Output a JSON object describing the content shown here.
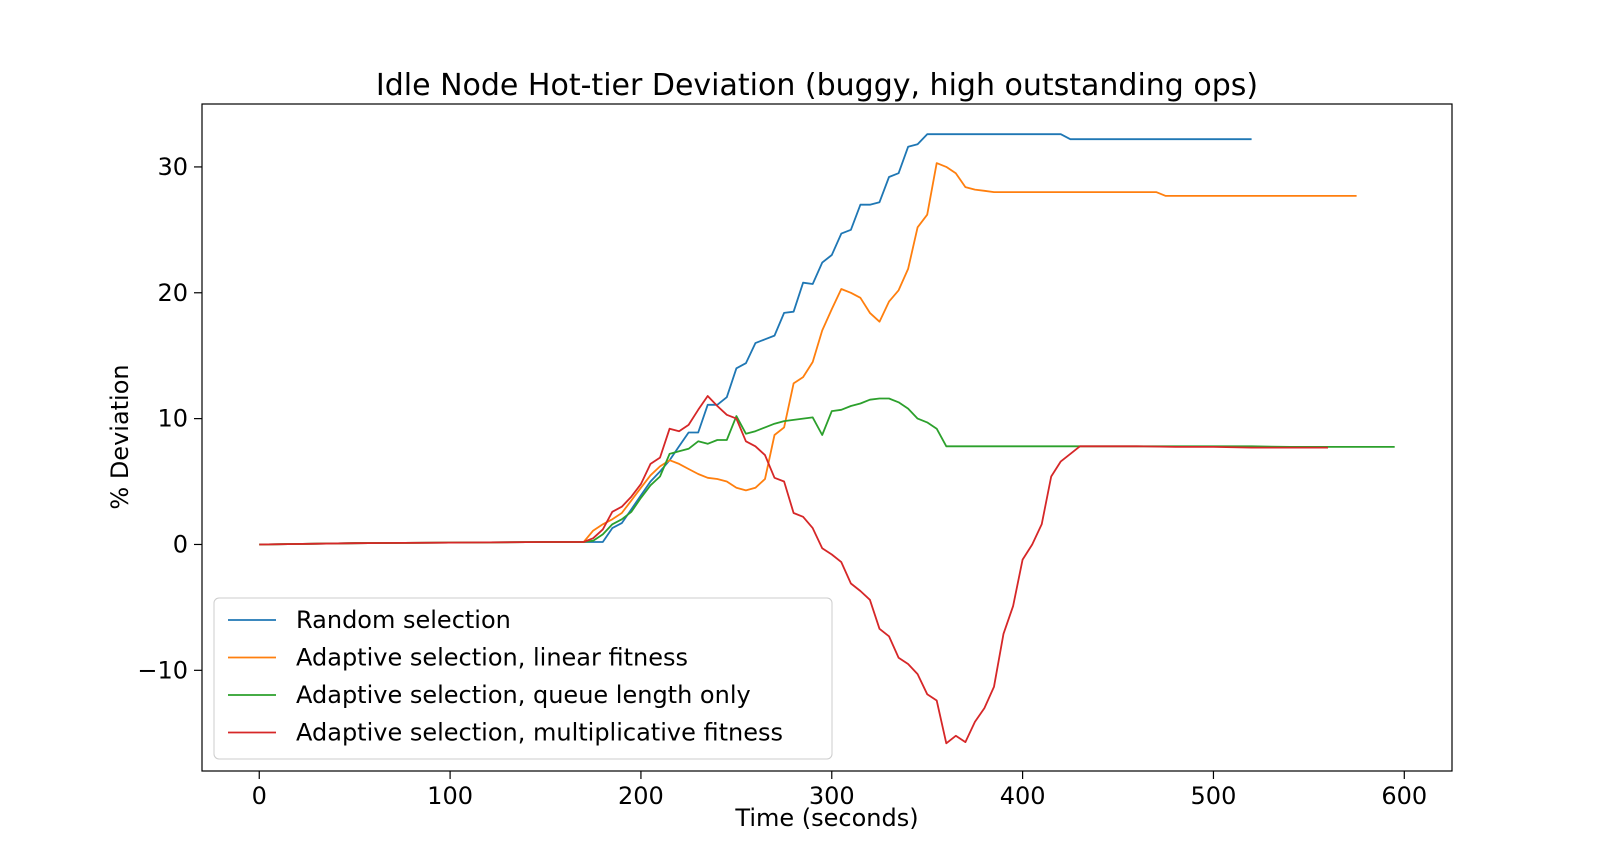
{
  "chart_data": {
    "type": "line",
    "title": "Idle Node Hot-tier Deviation (buggy, high outstanding ops)",
    "xlabel": "Time (seconds)",
    "ylabel": "% Deviation",
    "xlim": [
      -30,
      625
    ],
    "ylim": [
      -18,
      35
    ],
    "xticks": [
      0,
      100,
      200,
      300,
      400,
      500,
      600
    ],
    "yticks": [
      -10,
      0,
      10,
      20,
      30
    ],
    "xtick_labels": [
      "0",
      "100",
      "200",
      "300",
      "400",
      "500",
      "600"
    ],
    "ytick_labels": [
      "−10",
      "0",
      "10",
      "20",
      "30"
    ],
    "grid": false,
    "legend_position": "lower-left",
    "series": [
      {
        "name": "Random selection",
        "color": "#1f77b4",
        "x": [
          0,
          50,
          100,
          150,
          170,
          180,
          185,
          190,
          195,
          200,
          205,
          210,
          215,
          220,
          225,
          230,
          235,
          240,
          245,
          250,
          255,
          260,
          265,
          270,
          275,
          280,
          285,
          290,
          295,
          300,
          305,
          310,
          315,
          320,
          325,
          330,
          335,
          340,
          345,
          350,
          355,
          360,
          365,
          370,
          375,
          380,
          385,
          390,
          395,
          400,
          405,
          410,
          415,
          420,
          425,
          430,
          435,
          440,
          445,
          450,
          455,
          460,
          465,
          470,
          475,
          480,
          485,
          490,
          495,
          500,
          505,
          510,
          515,
          520
        ],
        "y": [
          0,
          0.1,
          0.15,
          0.2,
          0.2,
          0.2,
          1.3,
          1.7,
          2.8,
          3.9,
          5,
          5.8,
          6.7,
          7.8,
          8.9,
          8.9,
          11.1,
          11.1,
          11.7,
          14,
          14.4,
          16,
          16.3,
          16.6,
          18.4,
          18.5,
          20.8,
          20.7,
          22.4,
          23,
          24.7,
          25,
          27,
          27,
          27.2,
          29.2,
          29.5,
          31.6,
          31.8,
          32.6,
          32.6,
          32.6,
          32.6,
          32.6,
          32.6,
          32.6,
          32.6,
          32.6,
          32.6,
          32.6,
          32.6,
          32.6,
          32.6,
          32.6,
          32.2,
          32.2,
          32.2,
          32.2,
          32.2,
          32.2,
          32.2,
          32.2,
          32.2,
          32.2,
          32.2,
          32.2,
          32.2,
          32.2,
          32.2,
          32.2,
          32.2,
          32.2,
          32.2,
          32.2
        ]
      },
      {
        "name": "Adaptive selection, linear fitness",
        "color": "#ff7f0e",
        "x": [
          0,
          50,
          100,
          150,
          170,
          175,
          180,
          185,
          190,
          195,
          200,
          205,
          210,
          215,
          220,
          225,
          230,
          235,
          240,
          245,
          250,
          255,
          260,
          265,
          270,
          275,
          280,
          285,
          290,
          295,
          300,
          305,
          310,
          315,
          320,
          325,
          330,
          335,
          340,
          345,
          350,
          355,
          360,
          365,
          370,
          375,
          380,
          385,
          390,
          400,
          420,
          440,
          460,
          470,
          475,
          480,
          500,
          520,
          540,
          560,
          575
        ],
        "y": [
          0,
          0.1,
          0.15,
          0.2,
          0.2,
          1.1,
          1.6,
          2,
          2.5,
          3.5,
          4.5,
          5.5,
          6.2,
          6.7,
          6.4,
          6,
          5.6,
          5.3,
          5.2,
          5,
          4.5,
          4.3,
          4.5,
          5.2,
          8.7,
          9.3,
          12.8,
          13.3,
          14.5,
          17,
          18.7,
          20.3,
          20,
          19.6,
          18.4,
          17.7,
          19.3,
          20.2,
          21.9,
          25.2,
          26.2,
          30.3,
          30,
          29.5,
          28.4,
          28.2,
          28.1,
          28,
          28,
          28,
          28,
          28,
          28,
          28,
          27.7,
          27.7,
          27.7,
          27.7,
          27.7,
          27.7,
          27.7
        ]
      },
      {
        "name": "Adaptive selection, queue length only",
        "color": "#2ca02c",
        "x": [
          0,
          50,
          100,
          150,
          170,
          175,
          180,
          185,
          190,
          195,
          200,
          205,
          210,
          215,
          220,
          225,
          230,
          235,
          240,
          245,
          250,
          255,
          260,
          265,
          270,
          275,
          280,
          285,
          290,
          295,
          300,
          305,
          310,
          315,
          320,
          325,
          330,
          335,
          340,
          345,
          350,
          355,
          360,
          370,
          380,
          400,
          420,
          440,
          460,
          480,
          500,
          520,
          540,
          560,
          580,
          595
        ],
        "y": [
          0,
          0.1,
          0.15,
          0.2,
          0.2,
          0.3,
          0.8,
          1.6,
          2,
          2.6,
          3.7,
          4.7,
          5.4,
          7.2,
          7.4,
          7.6,
          8.2,
          8,
          8.3,
          8.3,
          10.2,
          8.8,
          9,
          9.3,
          9.6,
          9.8,
          9.9,
          10,
          10.1,
          8.7,
          10.6,
          10.7,
          11,
          11.2,
          11.5,
          11.6,
          11.6,
          11.3,
          10.8,
          10,
          9.7,
          9.2,
          7.8,
          7.8,
          7.8,
          7.8,
          7.8,
          7.8,
          7.8,
          7.8,
          7.8,
          7.8,
          7.75,
          7.75,
          7.75,
          7.75
        ]
      },
      {
        "name": "Adaptive selection, multiplicative fitness",
        "color": "#d62728",
        "x": [
          0,
          50,
          100,
          150,
          170,
          175,
          180,
          185,
          190,
          195,
          200,
          205,
          210,
          215,
          220,
          225,
          230,
          235,
          240,
          245,
          250,
          255,
          260,
          265,
          270,
          275,
          280,
          285,
          290,
          295,
          300,
          305,
          310,
          315,
          320,
          325,
          330,
          335,
          340,
          345,
          350,
          355,
          360,
          365,
          370,
          375,
          380,
          385,
          390,
          395,
          400,
          405,
          410,
          415,
          420,
          425,
          430,
          440,
          460,
          480,
          500,
          520,
          540,
          560
        ],
        "y": [
          0,
          0.1,
          0.15,
          0.2,
          0.2,
          0.5,
          1.2,
          2.6,
          3,
          3.8,
          4.8,
          6.4,
          6.9,
          9.2,
          9,
          9.5,
          10.7,
          11.8,
          11,
          10.3,
          10,
          8.2,
          7.8,
          7.1,
          5.3,
          5,
          2.5,
          2.2,
          1.3,
          -0.3,
          -0.8,
          -1.4,
          -3.1,
          -3.7,
          -4.4,
          -6.7,
          -7.3,
          -9,
          -9.5,
          -10.3,
          -11.9,
          -12.4,
          -15.8,
          -15.2,
          -15.7,
          -14.1,
          -13,
          -11.3,
          -7.1,
          -4.9,
          -1.2,
          0,
          1.6,
          5.4,
          6.6,
          7.2,
          7.8,
          7.8,
          7.8,
          7.75,
          7.75,
          7.7,
          7.7,
          7.7
        ]
      }
    ]
  }
}
